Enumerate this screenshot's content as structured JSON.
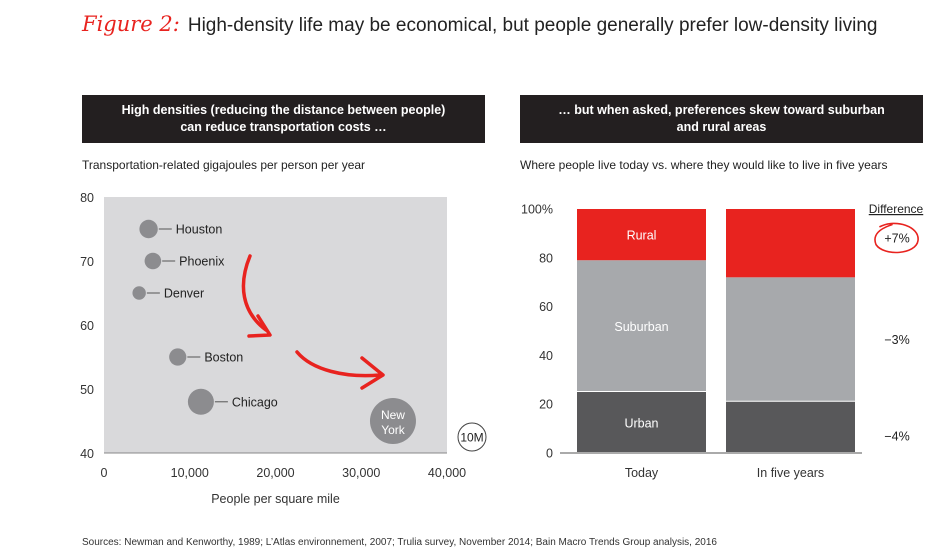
{
  "figure": {
    "label": "Figure 2:",
    "title": "High-density life may be economical, but people generally prefer low-density living"
  },
  "left_panel": {
    "banner_line1": "High densities (reducing the distance between people)",
    "banner_line2": "can reduce transportation costs …",
    "subtitle": "Transportation-related gigajoules per person per year"
  },
  "right_panel": {
    "banner_line1": "… but when asked, preferences skew toward suburban",
    "banner_line2": "and rural areas",
    "subtitle": "Where people live today vs. where they would like to live in five years"
  },
  "source": "Sources: Newman and Kenworthy, 1989; L’Atlas environnement, 2007; Trulia survey, November 2014; Bain Macro Trends Group analysis, 2016",
  "chart_data": [
    {
      "type": "scatter",
      "title": "High densities (reducing the distance between people) can reduce transportation costs …",
      "ylabel": "Transportation-related gigajoules per person per year",
      "xlabel": "People per square mile",
      "xlim": [
        0,
        40000
      ],
      "ylim": [
        40,
        80
      ],
      "xticks": [
        0,
        10000,
        20000,
        30000,
        40000
      ],
      "xtick_labels": [
        "0",
        "10,000",
        "20,000",
        "30,000",
        "40,000"
      ],
      "yticks": [
        40,
        50,
        60,
        70,
        80
      ],
      "ytick_labels": [
        "40",
        "50",
        "60",
        "70",
        "80"
      ],
      "points": [
        {
          "city": "Houston",
          "x": 5200,
          "y": 75,
          "size": 5.2
        },
        {
          "city": "Phoenix",
          "x": 5700,
          "y": 70,
          "size": 4.3
        },
        {
          "city": "Denver",
          "x": 4100,
          "y": 65,
          "size": 2.7
        },
        {
          "city": "Boston",
          "x": 8600,
          "y": 55,
          "size": 4.6
        },
        {
          "city": "Chicago",
          "x": 11300,
          "y": 48,
          "size": 9
        },
        {
          "city": "New York",
          "label_line1": "New",
          "label_line2": "York",
          "x": 33700,
          "y": 45,
          "size": 19
        }
      ],
      "size_legend": "10M"
    },
    {
      "type": "bar",
      "stacked": true,
      "title": "… but when asked, preferences skew toward suburban and rural areas",
      "ylabel": "Where people live today vs. where they would like to live in five years",
      "categories": [
        "Today",
        "In five years"
      ],
      "ylim": [
        0,
        100
      ],
      "yticks": [
        0,
        20,
        40,
        60,
        80,
        100
      ],
      "ytick_labels": [
        "0",
        "20",
        "40",
        "60",
        "80",
        "100%"
      ],
      "series": [
        {
          "name": "Urban",
          "color": "#58585a",
          "values": [
            25,
            21
          ]
        },
        {
          "name": "Suburban",
          "color": "#a7a9ac",
          "values": [
            54,
            51
          ]
        },
        {
          "name": "Rural",
          "color": "#e8231f",
          "values": [
            21,
            28
          ]
        }
      ],
      "difference_header": "Difference",
      "differences": [
        "+7%",
        "−3%",
        "−4%"
      ]
    }
  ]
}
